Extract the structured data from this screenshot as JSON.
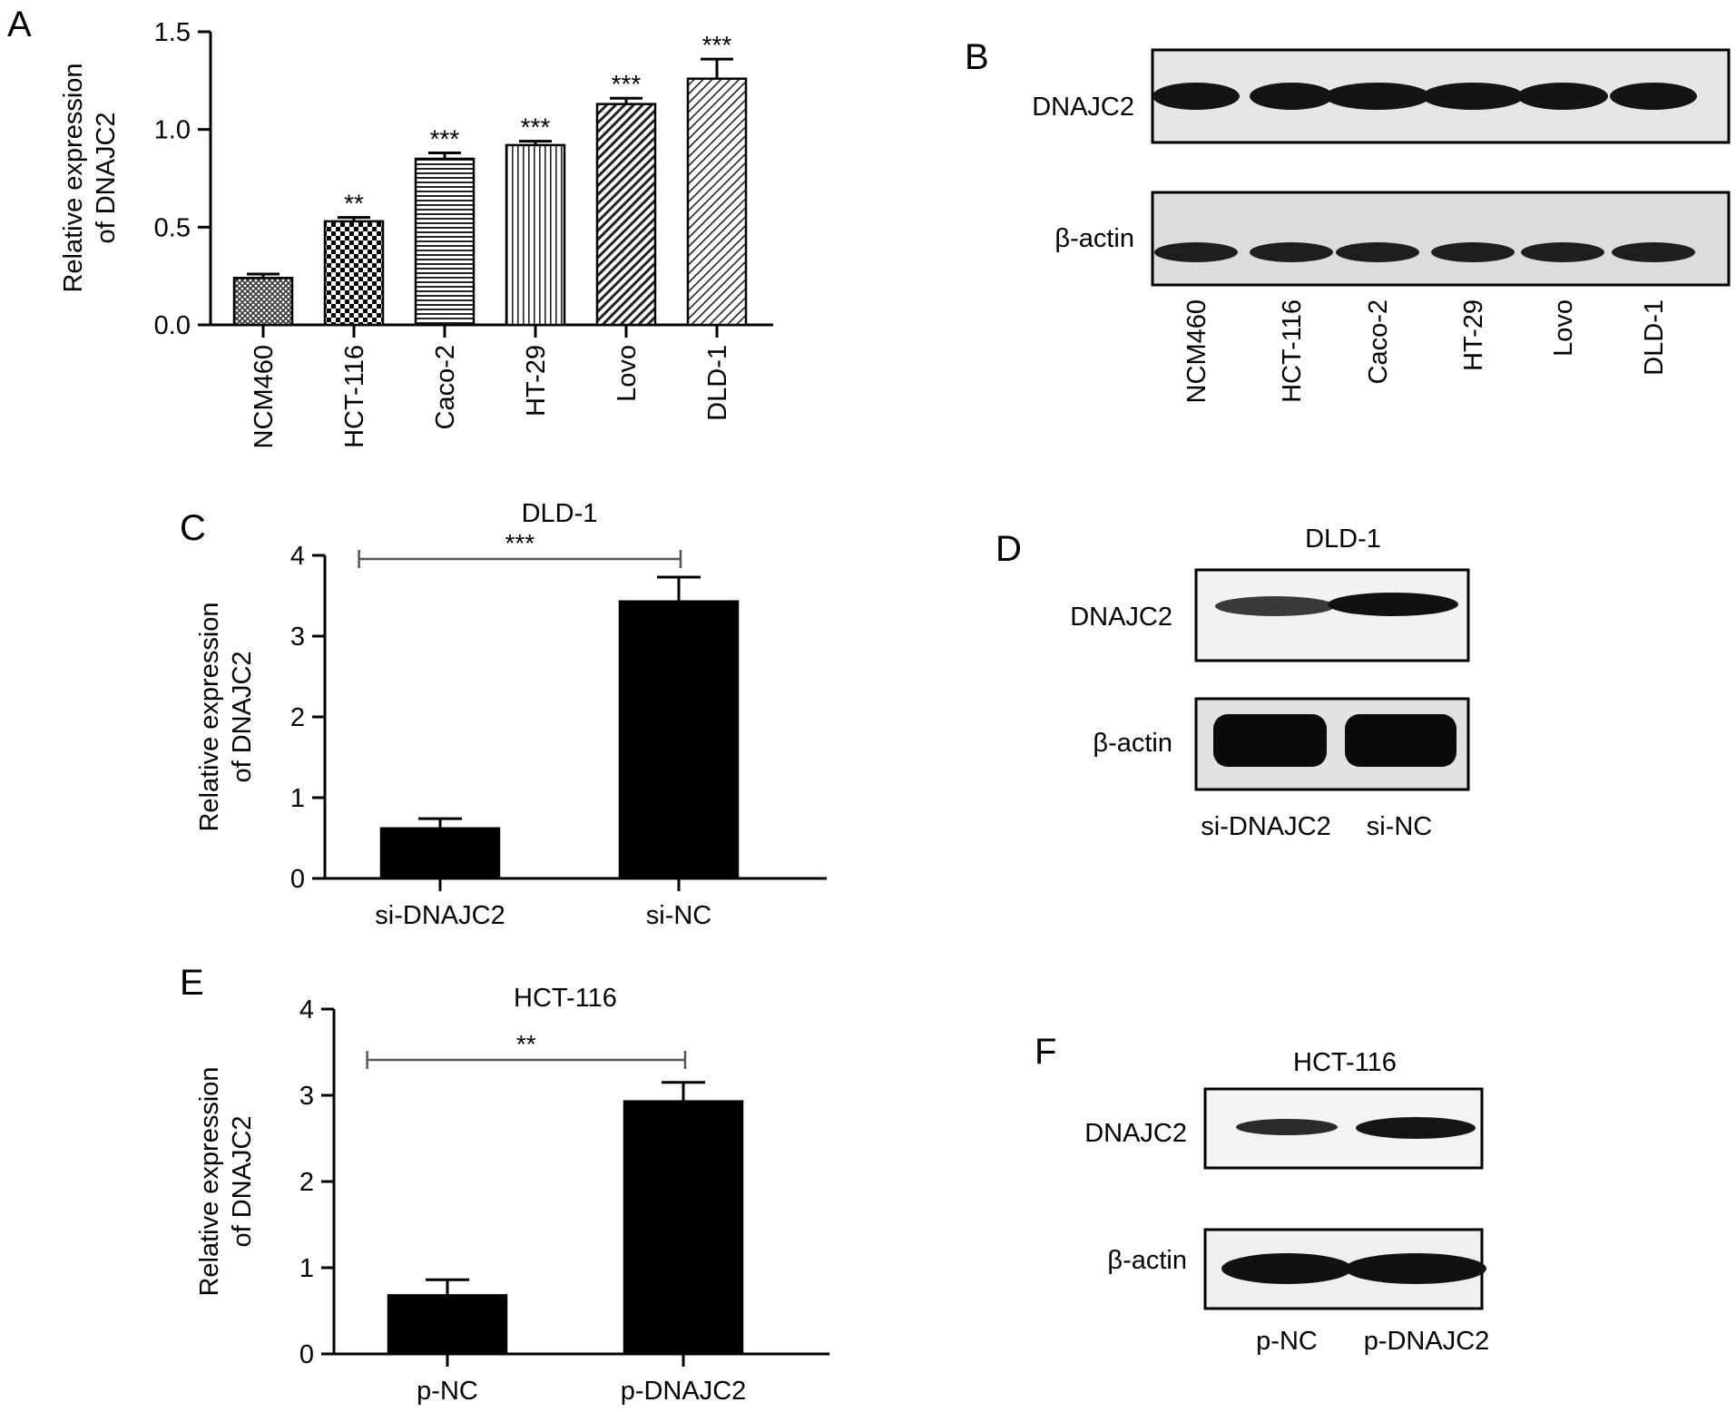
{
  "panel_labels": {
    "a": "A",
    "b": "B",
    "c": "C",
    "d": "D",
    "e": "E",
    "f": "F"
  },
  "chart_data": [
    {
      "id": "A",
      "type": "bar",
      "title": "",
      "ylabel_lines": [
        "Relative expression",
        "of DNAJC2"
      ],
      "xlabel": "",
      "ylim": [
        0,
        1.5
      ],
      "yticks": [
        0.0,
        0.5,
        1.0,
        1.5
      ],
      "ytick_labels": [
        "0.0",
        "0.5",
        "1.0",
        "1.5"
      ],
      "categories": [
        "NCM460",
        "HCT-116",
        "Caco-2",
        "HT-29",
        "Lovo",
        "DLD-1"
      ],
      "values": [
        0.24,
        0.53,
        0.85,
        0.92,
        1.13,
        1.26
      ],
      "errors": [
        0.02,
        0.02,
        0.03,
        0.02,
        0.03,
        0.1
      ],
      "significance": [
        "",
        "**",
        "***",
        "***",
        "***",
        "***"
      ],
      "patterns": [
        "crosshatch",
        "checker",
        "hstripes",
        "vstripes",
        "diag",
        "diag2"
      ]
    },
    {
      "id": "C",
      "type": "bar",
      "title": "DLD-1",
      "ylabel_lines": [
        "Relative expression",
        "of DNAJC2"
      ],
      "xlabel": "",
      "ylim": [
        0,
        4
      ],
      "yticks": [
        0,
        1,
        2,
        3,
        4
      ],
      "ytick_labels": [
        "0",
        "1",
        "2",
        "3",
        "4"
      ],
      "categories": [
        "si-DNAJC2",
        "si-NC"
      ],
      "values": [
        0.62,
        3.43
      ],
      "errors": [
        0.12,
        0.3
      ],
      "bracket": "***"
    },
    {
      "id": "E",
      "type": "bar",
      "title": "HCT-116",
      "ylabel_lines": [
        "Relative expression",
        "of DNAJC2"
      ],
      "xlabel": "",
      "ylim": [
        0,
        4
      ],
      "yticks": [
        0,
        1,
        2,
        3,
        4
      ],
      "ytick_labels": [
        "0",
        "1",
        "2",
        "3",
        "4"
      ],
      "categories": [
        "p-NC",
        "p-DNAJC2"
      ],
      "values": [
        0.68,
        2.93
      ],
      "errors": [
        0.18,
        0.22
      ],
      "bracket": "**"
    }
  ],
  "blots": {
    "b": {
      "rows": [
        "DNAJC2",
        "β-actin"
      ],
      "lanes": [
        "NCM460",
        "HCT-116",
        "Caco-2",
        "HT-29",
        "Lovo",
        "DLD-1"
      ]
    },
    "d": {
      "title": "DLD-1",
      "rows": [
        "DNAJC2",
        "β-actin"
      ],
      "lanes": [
        "si-DNAJC2",
        "si-NC"
      ]
    },
    "f": {
      "title": "HCT-116",
      "rows": [
        "DNAJC2",
        "β-actin"
      ],
      "lanes": [
        "p-NC",
        "p-DNAJC2"
      ]
    }
  }
}
